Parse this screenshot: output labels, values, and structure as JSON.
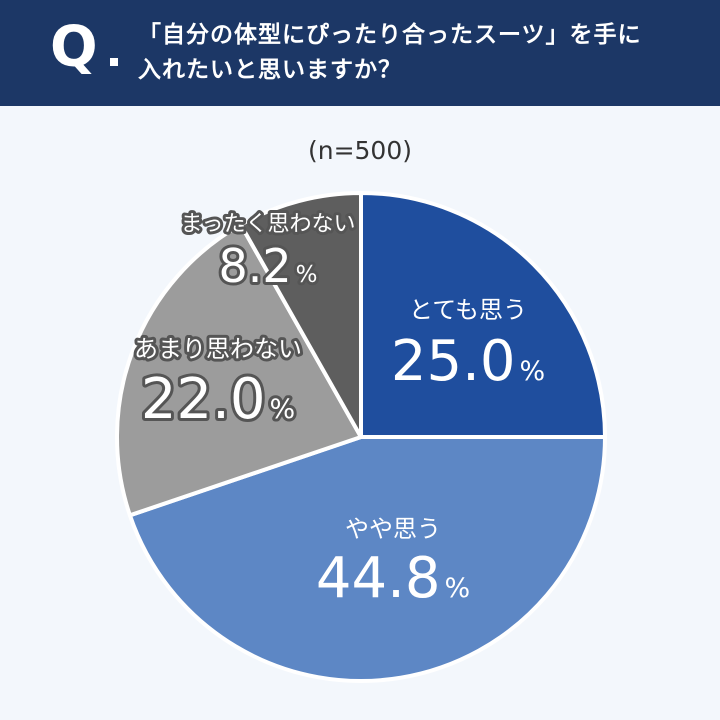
{
  "header": {
    "q_mark": "Q.",
    "question_line1": "「自分の体型にぴったり合ったスーツ」を手に",
    "question_line2": "入れたいと思いますか？"
  },
  "sample_label": "(n=500)",
  "chart_data": {
    "type": "pie",
    "title": "「自分の体型にぴったり合ったスーツ」を手に入れたいと思いますか？",
    "n": 500,
    "categories": [
      "とても思う",
      "やや思う",
      "あまり思わない",
      "まったく思わない"
    ],
    "values": [
      25.0,
      44.8,
      22.0,
      8.2
    ],
    "value_labels": [
      "25.0",
      "44.8",
      "22.0",
      "8.2"
    ],
    "unit": "%",
    "colors": [
      "#1f4e9e",
      "#5d87c5",
      "#9c9c9c",
      "#5e5e5e"
    ],
    "start": "12 o'clock",
    "direction": "clockwise"
  }
}
